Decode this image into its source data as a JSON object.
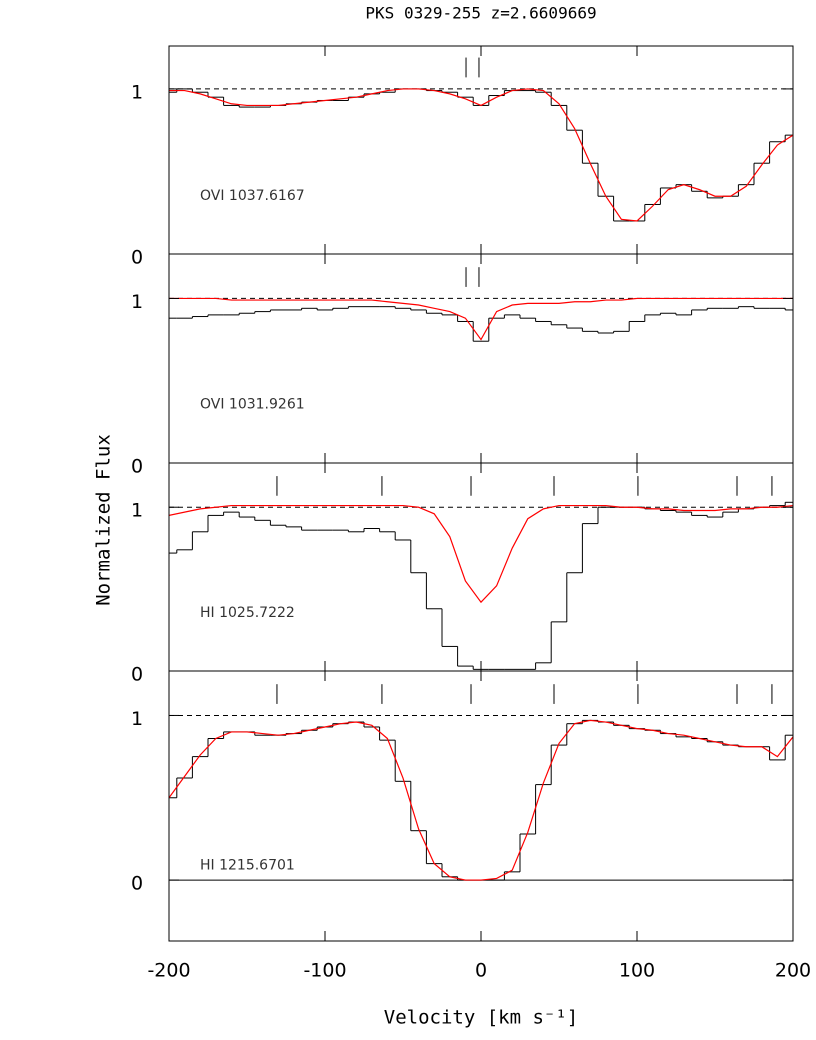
{
  "figure": {
    "title": "PKS 0329-255 z=2.6609669",
    "xlabel": "Velocity [km s⁻¹]",
    "ylabel": "Normalized Flux"
  },
  "chart_data": [
    {
      "type": "step",
      "annotation": "OVI 1037.6167",
      "xlim": [
        -200,
        200
      ],
      "xticks": [
        -200,
        -100,
        0,
        100,
        200
      ],
      "ylim": [
        0,
        1.26
      ],
      "yticks": [
        0,
        1
      ],
      "hlines": [
        {
          "value": 0,
          "style": "solid"
        },
        {
          "value": 1,
          "style": "dashed"
        }
      ],
      "components": [
        -9.6,
        -1.3
      ],
      "x": [
        -200,
        -190,
        -180,
        -170,
        -160,
        -150,
        -140,
        -130,
        -120,
        -110,
        -100,
        -90,
        -80,
        -70,
        -60,
        -50,
        -40,
        -30,
        -20,
        -10,
        0,
        10,
        20,
        30,
        40,
        50,
        60,
        70,
        80,
        90,
        100,
        110,
        120,
        130,
        140,
        150,
        160,
        170,
        180,
        190,
        200
      ],
      "values": [
        0.98,
        1.0,
        0.98,
        0.95,
        0.9,
        0.89,
        0.89,
        0.9,
        0.91,
        0.92,
        0.93,
        0.93,
        0.95,
        0.97,
        0.98,
        1.0,
        1.0,
        0.99,
        0.98,
        0.95,
        0.9,
        0.96,
        0.99,
        0.99,
        0.98,
        0.9,
        0.75,
        0.55,
        0.35,
        0.2,
        0.2,
        0.3,
        0.4,
        0.42,
        0.38,
        0.34,
        0.35,
        0.42,
        0.55,
        0.68,
        0.72
      ],
      "model": {
        "color": "#ff0000",
        "values": [
          0.99,
          0.99,
          0.97,
          0.94,
          0.91,
          0.9,
          0.9,
          0.9,
          0.91,
          0.92,
          0.93,
          0.94,
          0.95,
          0.97,
          0.99,
          1.0,
          1.0,
          0.99,
          0.97,
          0.94,
          0.9,
          0.95,
          0.99,
          1.0,
          0.99,
          0.91,
          0.76,
          0.55,
          0.35,
          0.21,
          0.2,
          0.29,
          0.39,
          0.42,
          0.39,
          0.35,
          0.35,
          0.41,
          0.54,
          0.66,
          0.72
        ]
      }
    },
    {
      "type": "step",
      "annotation": "OVI 1031.9261",
      "xlim": [
        -200,
        200
      ],
      "xticks": [
        -200,
        -100,
        0,
        100,
        200
      ],
      "ylim": [
        0,
        1.27
      ],
      "yticks": [
        0,
        1
      ],
      "hlines": [
        {
          "value": 0,
          "style": "solid"
        },
        {
          "value": 1,
          "style": "dashed"
        }
      ],
      "components": [
        -9.6,
        -1.3
      ],
      "x": [
        -200,
        -190,
        -180,
        -170,
        -160,
        -150,
        -140,
        -130,
        -120,
        -110,
        -100,
        -90,
        -80,
        -70,
        -60,
        -50,
        -40,
        -30,
        -20,
        -10,
        0,
        10,
        20,
        30,
        40,
        50,
        60,
        70,
        80,
        90,
        100,
        110,
        120,
        130,
        140,
        150,
        160,
        170,
        180,
        190,
        200
      ],
      "values": [
        0.88,
        0.88,
        0.89,
        0.9,
        0.9,
        0.91,
        0.92,
        0.93,
        0.93,
        0.94,
        0.93,
        0.94,
        0.95,
        0.95,
        0.95,
        0.94,
        0.93,
        0.91,
        0.9,
        0.86,
        0.74,
        0.88,
        0.9,
        0.88,
        0.86,
        0.84,
        0.82,
        0.8,
        0.79,
        0.8,
        0.86,
        0.9,
        0.91,
        0.9,
        0.93,
        0.94,
        0.94,
        0.95,
        0.94,
        0.94,
        0.93
      ],
      "model": {
        "color": "#ff0000",
        "values": [
          1.0,
          1.0,
          1.0,
          1.0,
          0.99,
          0.99,
          0.99,
          0.99,
          0.99,
          0.99,
          0.99,
          0.99,
          0.99,
          0.99,
          0.98,
          0.97,
          0.96,
          0.94,
          0.92,
          0.88,
          0.75,
          0.92,
          0.96,
          0.97,
          0.97,
          0.97,
          0.98,
          0.98,
          0.99,
          0.99,
          1.0,
          1.0,
          1.0,
          1.0,
          1.0,
          1.0,
          1.0,
          1.0,
          1.0,
          1.0,
          1.0
        ]
      }
    },
    {
      "type": "step",
      "annotation": "HI 1025.7222",
      "xlim": [
        -200,
        200
      ],
      "xticks": [
        -200,
        -100,
        0,
        100,
        200
      ],
      "ylim": [
        0,
        1.27
      ],
      "yticks": [
        0,
        1
      ],
      "hlines": [
        {
          "value": 0,
          "style": "solid"
        },
        {
          "value": 1,
          "style": "dashed"
        }
      ],
      "components": [
        -130.8,
        -63.5,
        -6.4,
        46.8,
        100.6,
        164.1,
        186.5
      ],
      "x": [
        -200,
        -190,
        -180,
        -170,
        -160,
        -150,
        -140,
        -130,
        -120,
        -110,
        -100,
        -90,
        -80,
        -70,
        -60,
        -50,
        -40,
        -30,
        -20,
        -10,
        0,
        10,
        20,
        30,
        40,
        50,
        60,
        70,
        80,
        90,
        100,
        110,
        120,
        130,
        140,
        150,
        160,
        170,
        180,
        190,
        200
      ],
      "values": [
        0.72,
        0.74,
        0.85,
        0.95,
        0.97,
        0.94,
        0.92,
        0.89,
        0.88,
        0.86,
        0.86,
        0.86,
        0.85,
        0.87,
        0.85,
        0.8,
        0.6,
        0.38,
        0.15,
        0.03,
        0.01,
        0.01,
        0.01,
        0.01,
        0.05,
        0.3,
        0.6,
        0.9,
        1.0,
        1.0,
        1.0,
        0.99,
        0.98,
        0.97,
        0.95,
        0.94,
        0.97,
        0.99,
        1.0,
        1.01,
        1.03
      ],
      "model": {
        "color": "#ff0000",
        "values": [
          0.95,
          0.97,
          0.99,
          1.0,
          1.01,
          1.01,
          1.01,
          1.01,
          1.01,
          1.01,
          1.01,
          1.01,
          1.01,
          1.01,
          1.01,
          1.01,
          1.0,
          0.96,
          0.82,
          0.55,
          0.42,
          0.52,
          0.75,
          0.93,
          0.99,
          1.01,
          1.01,
          1.01,
          1.01,
          1.0,
          1.0,
          0.99,
          0.99,
          0.98,
          0.98,
          0.98,
          0.99,
          0.99,
          1.0,
          1.0,
          1.01
        ]
      }
    },
    {
      "type": "step",
      "annotation": "HI 1215.6701",
      "xlim": [
        -200,
        200
      ],
      "xticks": [
        -200,
        -100,
        0,
        100,
        200
      ],
      "ylim": [
        -0.37,
        1.27
      ],
      "yticks": [
        0,
        1
      ],
      "hlines": [
        {
          "value": 0,
          "style": "solid"
        },
        {
          "value": 1,
          "style": "dashed"
        }
      ],
      "components": [
        -130.8,
        -63.5,
        -6.4,
        46.8,
        100.6,
        164.1,
        186.5
      ],
      "x": [
        -200,
        -190,
        -180,
        -170,
        -160,
        -150,
        -140,
        -130,
        -120,
        -110,
        -100,
        -90,
        -80,
        -70,
        -60,
        -50,
        -40,
        -30,
        -20,
        -10,
        0,
        10,
        20,
        30,
        40,
        50,
        60,
        70,
        80,
        90,
        100,
        110,
        120,
        130,
        140,
        150,
        160,
        170,
        180,
        190,
        200
      ],
      "values": [
        0.5,
        0.62,
        0.75,
        0.86,
        0.9,
        0.9,
        0.88,
        0.88,
        0.89,
        0.91,
        0.93,
        0.95,
        0.96,
        0.93,
        0.85,
        0.6,
        0.3,
        0.1,
        0.02,
        0.0,
        0.0,
        0.0,
        0.05,
        0.28,
        0.58,
        0.82,
        0.95,
        0.97,
        0.96,
        0.94,
        0.92,
        0.91,
        0.89,
        0.87,
        0.86,
        0.84,
        0.82,
        0.81,
        0.81,
        0.73,
        0.88
      ],
      "model": {
        "color": "#ff0000",
        "values": [
          0.5,
          0.63,
          0.76,
          0.86,
          0.9,
          0.9,
          0.89,
          0.88,
          0.89,
          0.91,
          0.93,
          0.95,
          0.96,
          0.94,
          0.86,
          0.62,
          0.31,
          0.1,
          0.02,
          0.0,
          0.0,
          0.01,
          0.06,
          0.29,
          0.59,
          0.83,
          0.95,
          0.97,
          0.96,
          0.94,
          0.92,
          0.91,
          0.89,
          0.88,
          0.86,
          0.84,
          0.82,
          0.81,
          0.81,
          0.75,
          0.87
        ]
      }
    }
  ]
}
